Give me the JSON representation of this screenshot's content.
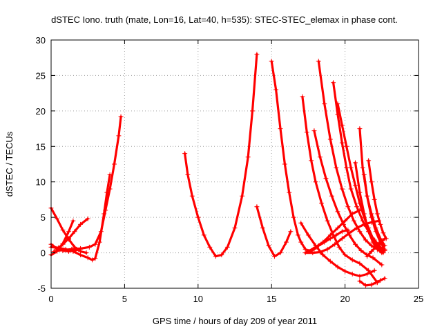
{
  "chart_data": {
    "type": "scatter",
    "title": "dSTEC Iono. truth (mate, Lon=16, Lat=40, h=535): STEC-STEC_elemax in phase cont.",
    "xlabel": "GPS time / hours of day 209 of year 2011",
    "ylabel": "dSTEC  / TECUs",
    "xlim": [
      0,
      25
    ],
    "ylim": [
      -5,
      30
    ],
    "xticks": [
      0,
      5,
      10,
      15,
      20,
      25
    ],
    "yticks": [
      -5,
      0,
      5,
      10,
      15,
      20,
      25,
      30
    ],
    "grid": true,
    "marker": "+",
    "color": "#ff0000",
    "series": [
      {
        "x": [
          0,
          0.4,
          0.8,
          1.2,
          1.6,
          2.0,
          2.4
        ],
        "y": [
          6.3,
          4.8,
          3.2,
          1.9,
          0.8,
          0.2,
          0.0
        ]
      },
      {
        "x": [
          0,
          0.5,
          1.0,
          1.5,
          2.0,
          2.5,
          2.8,
          3.0,
          3.3,
          3.6,
          3.8,
          4.0
        ],
        "y": [
          0.8,
          0.7,
          0.5,
          0.2,
          -0.3,
          -0.7,
          -1.0,
          -0.8,
          1.5,
          5.5,
          8.5,
          11.0
        ]
      },
      {
        "x": [
          0,
          0.4,
          0.8,
          1.2,
          1.6,
          2.0
        ],
        "y": [
          1.2,
          0.6,
          0.3,
          0.2,
          0.3,
          0.5
        ]
      },
      {
        "x": [
          0,
          0.4,
          0.8,
          1.2,
          1.5
        ],
        "y": [
          -0.3,
          0.2,
          1.3,
          3.0,
          4.5
        ]
      },
      {
        "x": [
          0.4,
          0.8,
          1.2,
          1.6,
          2.0,
          2.5
        ],
        "y": [
          0.5,
          1.2,
          2.0,
          3.0,
          4.0,
          4.8
        ]
      },
      {
        "x": [
          0.2,
          0.8,
          1.4,
          2.0,
          2.6,
          3.0,
          3.4,
          3.7,
          4.0,
          4.3,
          4.6,
          4.75
        ],
        "y": [
          0.2,
          0.4,
          0.5,
          0.6,
          0.8,
          1.2,
          3.0,
          6.0,
          9.0,
          12.5,
          16.5,
          19.2
        ]
      },
      {
        "x": [
          9.1,
          9.3,
          9.6,
          10.0,
          10.4,
          10.8,
          11.2,
          11.6,
          12.0,
          12.5,
          13.0,
          13.4,
          13.7,
          14.0
        ],
        "y": [
          14.0,
          11.0,
          8.0,
          5.0,
          2.5,
          0.8,
          -0.5,
          -0.3,
          0.8,
          3.5,
          8.0,
          13.5,
          20.0,
          28.0
        ]
      },
      {
        "x": [
          14.0,
          14.4,
          14.8,
          15.2,
          15.6,
          16.0,
          16.3
        ],
        "y": [
          6.5,
          3.5,
          1.0,
          -0.5,
          0.0,
          1.5,
          3.0
        ]
      },
      {
        "x": [
          15.0,
          15.3,
          15.6,
          15.9,
          16.2,
          16.5,
          16.8,
          17.0,
          17.3,
          17.6,
          17.9,
          18.2,
          18.6,
          19.0,
          19.4,
          19.8,
          20.2
        ],
        "y": [
          27.0,
          23.0,
          17.5,
          12.5,
          8.5,
          5.0,
          2.5,
          1.5,
          0.5,
          0.2,
          0.5,
          1.0,
          1.5,
          2.0,
          2.5,
          3.0,
          3.2
        ]
      },
      {
        "x": [
          17.0,
          17.5,
          18.0,
          18.5,
          19.0,
          19.5,
          20.0,
          20.5,
          21.0,
          21.5,
          22.0
        ],
        "y": [
          4.2,
          2.5,
          1.0,
          -0.3,
          -1.2,
          -2.0,
          -2.6,
          -3.0,
          -3.3,
          -3.0,
          -2.5
        ]
      },
      {
        "x": [
          17.1,
          17.4,
          17.7,
          18.0,
          18.4,
          18.8,
          19.2,
          19.6,
          20.0,
          20.5,
          21.0,
          21.6,
          22.2
        ],
        "y": [
          22.0,
          17.0,
          13.0,
          10.0,
          7.0,
          4.5,
          2.5,
          0.8,
          -0.3,
          -1.0,
          -1.5,
          -2.5,
          -4.2
        ]
      },
      {
        "x": [
          17.3,
          17.8,
          18.3,
          18.8,
          19.3,
          19.8,
          20.3,
          20.8,
          21.3,
          21.8,
          22.3
        ],
        "y": [
          0.0,
          0.0,
          0.1,
          0.5,
          1.2,
          2.0,
          2.8,
          3.5,
          4.0,
          4.3,
          4.5
        ]
      },
      {
        "x": [
          17.5,
          18.0,
          18.5,
          19.0,
          19.5,
          20.0,
          20.5,
          21.0
        ],
        "y": [
          0.2,
          0.8,
          1.5,
          2.5,
          3.5,
          4.5,
          5.5,
          6.0
        ]
      },
      {
        "x": [
          17.9,
          18.3,
          18.7,
          19.1,
          19.5,
          19.9,
          20.3,
          20.7,
          21.1,
          21.5,
          21.9,
          22.5
        ],
        "y": [
          17.2,
          13.5,
          10.5,
          8.0,
          5.8,
          4.0,
          2.5,
          1.2,
          0.3,
          -0.3,
          -0.7,
          -1.7
        ]
      },
      {
        "x": [
          18.2,
          18.6,
          19.0,
          19.4,
          19.8,
          20.2,
          20.6,
          21.0,
          21.4,
          21.8,
          22.2,
          22.6
        ],
        "y": [
          27.0,
          21.0,
          16.0,
          12.0,
          9.0,
          6.5,
          4.5,
          3.0,
          1.8,
          1.0,
          0.5,
          0.2
        ]
      },
      {
        "x": [
          19.2,
          19.5,
          19.8,
          20.1,
          20.4,
          20.8,
          21.2,
          21.6,
          22.0,
          22.4,
          22.7
        ],
        "y": [
          24.0,
          19.5,
          15.5,
          12.0,
          9.0,
          6.5,
          4.5,
          3.0,
          1.8,
          0.8,
          0.3
        ]
      },
      {
        "x": [
          19.5,
          19.8,
          20.1,
          20.4,
          20.7,
          21.0,
          21.3,
          21.6,
          21.9,
          22.2,
          22.6
        ],
        "y": [
          21.0,
          18.0,
          15.0,
          12.0,
          9.5,
          7.0,
          5.0,
          3.5,
          2.0,
          1.0,
          0.0
        ]
      },
      {
        "x": [
          20.7,
          21.0,
          21.3,
          21.6,
          21.9,
          22.2,
          22.5
        ],
        "y": [
          12.7,
          8.5,
          5.5,
          3.0,
          1.5,
          0.5,
          0.0
        ]
      },
      {
        "x": [
          21.0,
          21.2,
          21.5,
          21.8,
          22.1,
          22.4,
          22.7
        ],
        "y": [
          17.5,
          12.0,
          8.0,
          5.0,
          3.0,
          1.5,
          0.5
        ]
      },
      {
        "x": [
          21.3,
          21.5,
          21.8,
          22.1,
          22.4,
          22.7
        ],
        "y": [
          11.0,
          8.0,
          5.5,
          3.5,
          2.0,
          1.0
        ]
      },
      {
        "x": [
          21.6,
          21.8,
          22.0,
          22.2,
          22.4,
          22.6,
          22.8
        ],
        "y": [
          13.0,
          10.0,
          7.5,
          5.5,
          4.0,
          2.8,
          2.0
        ]
      },
      {
        "x": [
          21.0,
          21.4,
          21.8,
          22.1,
          22.4,
          22.7
        ],
        "y": [
          -4.0,
          -4.6,
          -4.5,
          -4.2,
          -3.9,
          -3.6
        ]
      },
      {
        "x": [
          21.5,
          21.8,
          22.1,
          22.4,
          22.7
        ],
        "y": [
          -0.5,
          0.2,
          0.8,
          1.4,
          2.0
        ]
      }
    ]
  }
}
